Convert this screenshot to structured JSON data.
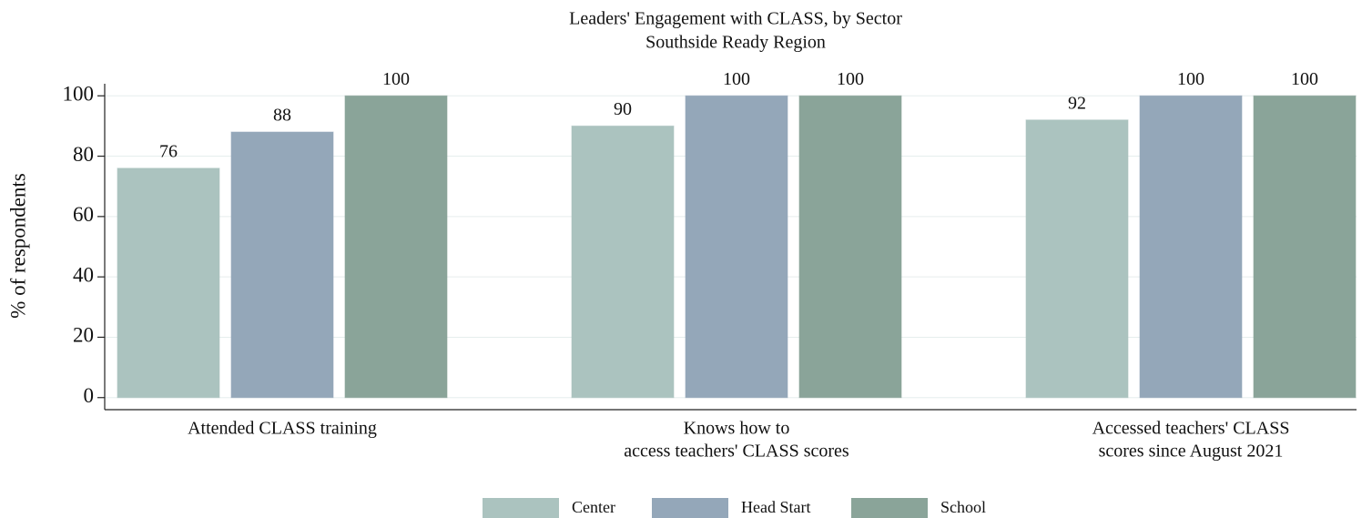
{
  "chart_data": {
    "type": "bar",
    "title": "Leaders' Engagement with CLASS, by Sector",
    "subtitle": "Southside Ready Region",
    "ylabel": "% of respondents",
    "categories": [
      [
        "Attended CLASS training"
      ],
      [
        "Knows how to",
        "access teachers' CLASS scores"
      ],
      [
        "Accessed teachers' CLASS",
        "scores since August 2021"
      ]
    ],
    "series": [
      {
        "name": "Center",
        "color": "#abc3bf",
        "values": [
          76,
          90,
          92
        ]
      },
      {
        "name": "Head Start",
        "color": "#94a7b9",
        "values": [
          88,
          100,
          100
        ]
      },
      {
        "name": "School",
        "color": "#8aa499",
        "values": [
          100,
          100,
          100
        ]
      }
    ],
    "ylim": [
      -4,
      104
    ],
    "yticks": [
      0,
      20,
      40,
      60,
      80,
      100
    ],
    "grid": true,
    "legend": "bottom"
  }
}
